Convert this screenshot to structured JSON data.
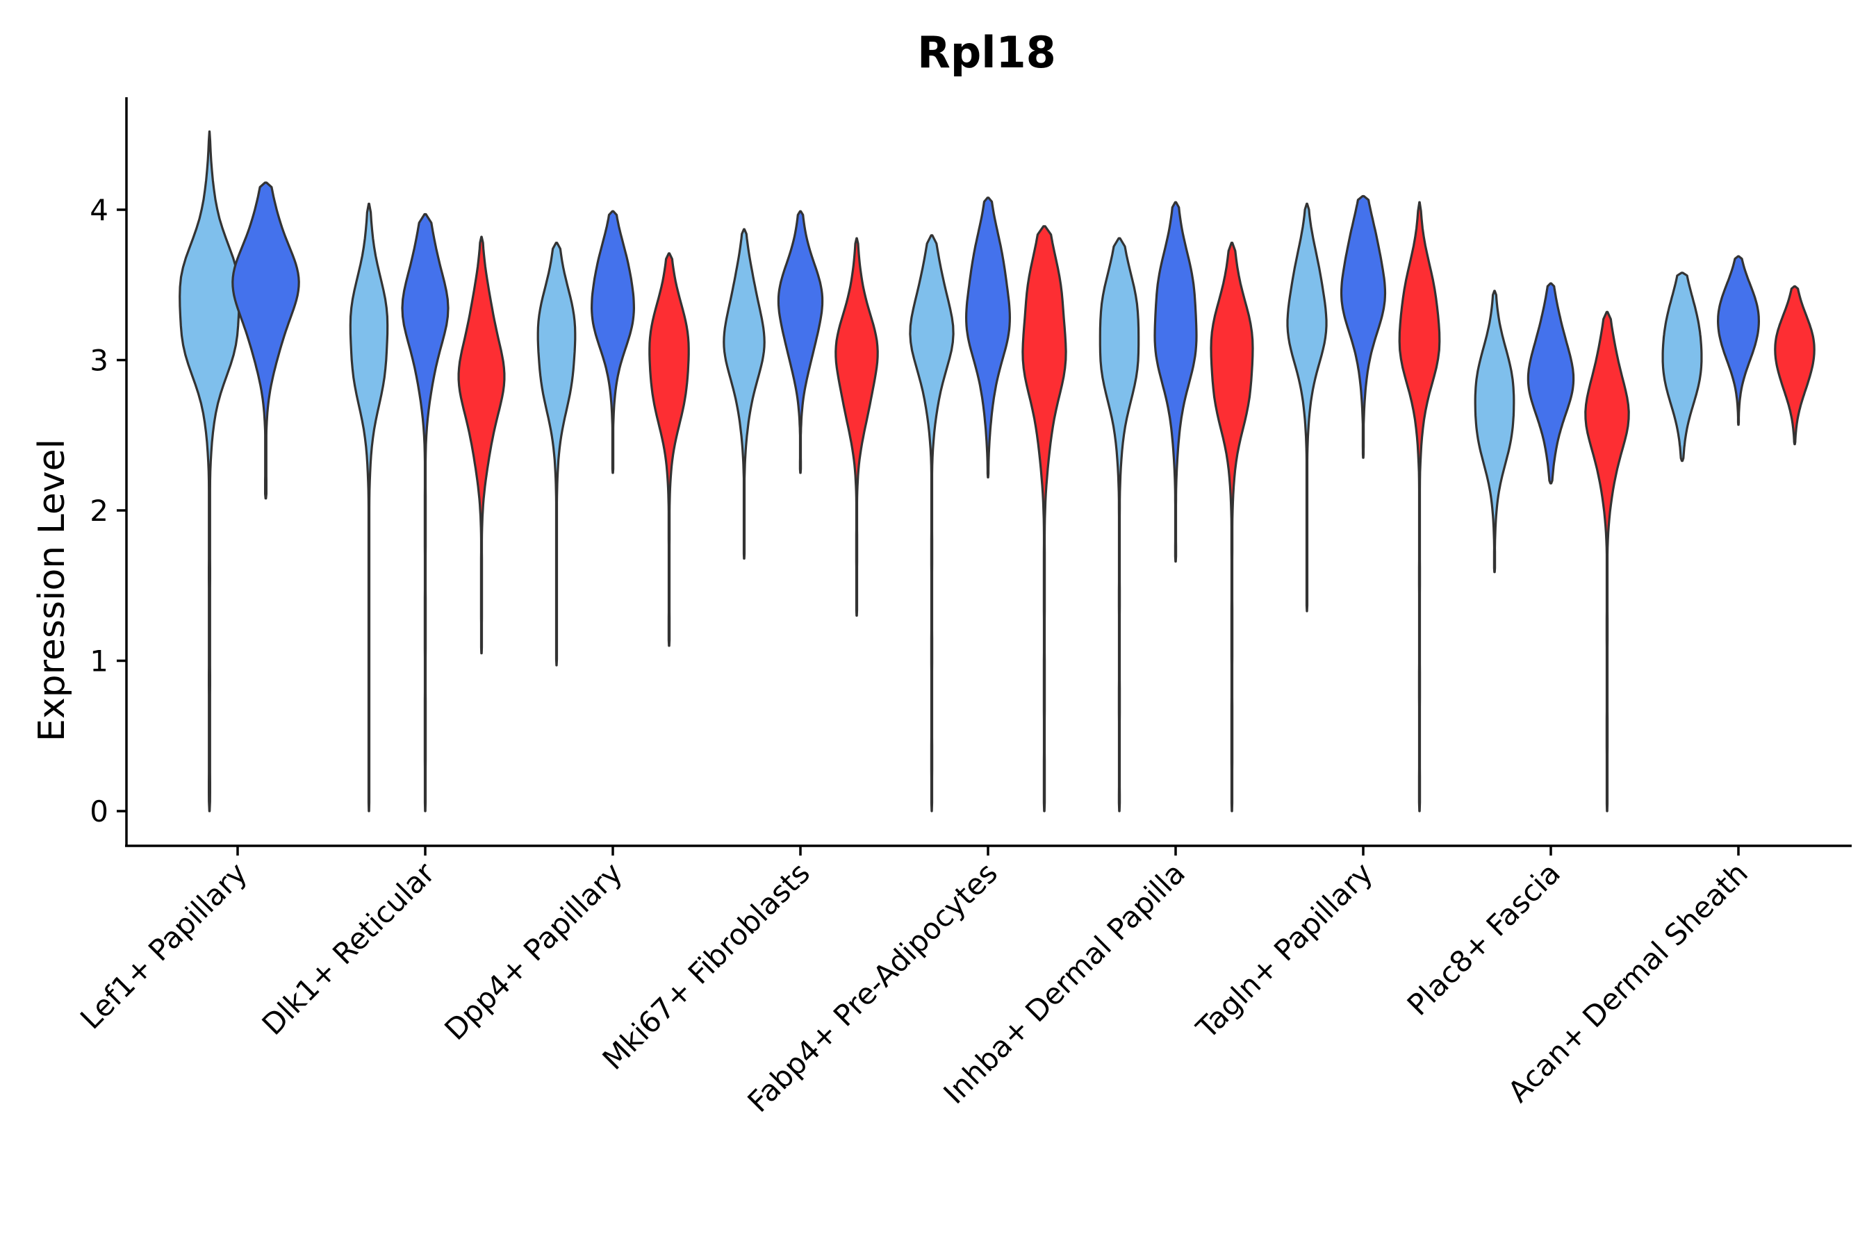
{
  "chart_data": {
    "type": "violin",
    "title": "Rpl18",
    "xlabel": "",
    "ylabel": "Expression Level",
    "ylim": [
      -0.22,
      4.75
    ],
    "yticks": [
      0,
      1,
      2,
      3,
      4
    ],
    "grid": false,
    "legend": "none",
    "group_colors": [
      "#7fbfec",
      "#4472ec",
      "#fd2e33"
    ],
    "categories": [
      "Lef1+ Papillary",
      "Dlk1+ Reticular",
      "Dpp4+ Papillary",
      "Mki67+ Fibroblasts",
      "Fabp4+ Pre-Adipocytes",
      "Inhba+ Dermal Papilla",
      "Tagln+ Papillary",
      "Plac8+ Fascia",
      "Acan+ Dermal Sheath"
    ],
    "violins": [
      {
        "category": "Lef1+ Papillary",
        "group": 0,
        "min": 0.0,
        "max": 4.52,
        "mode": 3.35,
        "spread": 0.4,
        "halfwidth": 0.55
      },
      {
        "category": "Lef1+ Papillary",
        "group": 1,
        "min": 2.08,
        "max": 4.18,
        "mode": 3.5,
        "spread": 0.35,
        "halfwidth": 0.55
      },
      {
        "category": "Dlk1+ Reticular",
        "group": 0,
        "min": 0.0,
        "max": 4.04,
        "mode": 3.15,
        "spread": 0.38,
        "halfwidth": 0.34
      },
      {
        "category": "Dlk1+ Reticular",
        "group": 1,
        "min": 0.0,
        "max": 3.97,
        "mode": 3.35,
        "spread": 0.35,
        "halfwidth": 0.38
      },
      {
        "category": "Dlk1+ Reticular",
        "group": 2,
        "min": 1.05,
        "max": 3.82,
        "mode": 2.9,
        "spread": 0.38,
        "halfwidth": 0.38
      },
      {
        "category": "Dpp4+ Papillary",
        "group": 0,
        "min": 0.97,
        "max": 3.78,
        "mode": 3.1,
        "spread": 0.36,
        "halfwidth": 0.34
      },
      {
        "category": "Dpp4+ Papillary",
        "group": 1,
        "min": 2.25,
        "max": 3.99,
        "mode": 3.4,
        "spread": 0.3,
        "halfwidth": 0.38
      },
      {
        "category": "Dpp4+ Papillary",
        "group": 2,
        "min": 1.1,
        "max": 3.71,
        "mode": 3.0,
        "spread": 0.35,
        "halfwidth": 0.36
      },
      {
        "category": "Mki67+ Fibroblasts",
        "group": 0,
        "min": 1.68,
        "max": 3.87,
        "mode": 3.15,
        "spread": 0.33,
        "halfwidth": 0.34
      },
      {
        "category": "Mki67+ Fibroblasts",
        "group": 1,
        "min": 2.25,
        "max": 3.99,
        "mode": 3.35,
        "spread": 0.3,
        "halfwidth": 0.38
      },
      {
        "category": "Mki67+ Fibroblasts",
        "group": 2,
        "min": 1.3,
        "max": 3.81,
        "mode": 3.0,
        "spread": 0.33,
        "halfwidth": 0.36
      },
      {
        "category": "Fabp4+ Pre-Adipocytes",
        "group": 0,
        "min": 0.0,
        "max": 3.83,
        "mode": 3.2,
        "spread": 0.33,
        "halfwidth": 0.36
      },
      {
        "category": "Fabp4+ Pre-Adipocytes",
        "group": 1,
        "min": 2.22,
        "max": 4.08,
        "mode": 3.35,
        "spread": 0.38,
        "halfwidth": 0.38
      },
      {
        "category": "Fabp4+ Pre-Adipocytes",
        "group": 2,
        "min": 0.0,
        "max": 3.89,
        "mode": 3.15,
        "spread": 0.45,
        "halfwidth": 0.38
      },
      {
        "category": "Inhba+ Dermal Papilla",
        "group": 0,
        "min": 0.0,
        "max": 3.81,
        "mode": 3.15,
        "spread": 0.38,
        "halfwidth": 0.36
      },
      {
        "category": "Inhba+ Dermal Papilla",
        "group": 1,
        "min": 1.66,
        "max": 4.05,
        "mode": 3.25,
        "spread": 0.4,
        "halfwidth": 0.38
      },
      {
        "category": "Inhba+ Dermal Papilla",
        "group": 2,
        "min": 0.0,
        "max": 3.78,
        "mode": 3.0,
        "spread": 0.38,
        "halfwidth": 0.38
      },
      {
        "category": "Tagln+ Papillary",
        "group": 0,
        "min": 1.33,
        "max": 4.04,
        "mode": 3.3,
        "spread": 0.33,
        "halfwidth": 0.34
      },
      {
        "category": "Tagln+ Papillary",
        "group": 1,
        "min": 2.35,
        "max": 4.09,
        "mode": 3.5,
        "spread": 0.33,
        "halfwidth": 0.38
      },
      {
        "category": "Tagln+ Papillary",
        "group": 2,
        "min": 0.0,
        "max": 4.05,
        "mode": 3.2,
        "spread": 0.35,
        "halfwidth": 0.36
      },
      {
        "category": "Plac8+ Fascia",
        "group": 0,
        "min": 1.59,
        "max": 3.46,
        "mode": 2.7,
        "spread": 0.33,
        "halfwidth": 0.36
      },
      {
        "category": "Plac8+ Fascia",
        "group": 1,
        "min": 2.18,
        "max": 3.51,
        "mode": 2.9,
        "spread": 0.3,
        "halfwidth": 0.38
      },
      {
        "category": "Plac8+ Fascia",
        "group": 2,
        "min": 0.0,
        "max": 3.32,
        "mode": 2.65,
        "spread": 0.33,
        "halfwidth": 0.36
      },
      {
        "category": "Acan+ Dermal Sheath",
        "group": 0,
        "min": 2.33,
        "max": 3.58,
        "mode": 3.05,
        "spread": 0.3,
        "halfwidth": 0.36
      },
      {
        "category": "Acan+ Dermal Sheath",
        "group": 1,
        "min": 2.57,
        "max": 3.69,
        "mode": 3.25,
        "spread": 0.22,
        "halfwidth": 0.38
      },
      {
        "category": "Acan+ Dermal Sheath",
        "group": 2,
        "min": 2.44,
        "max": 3.49,
        "mode": 3.05,
        "spread": 0.22,
        "halfwidth": 0.36
      }
    ]
  }
}
